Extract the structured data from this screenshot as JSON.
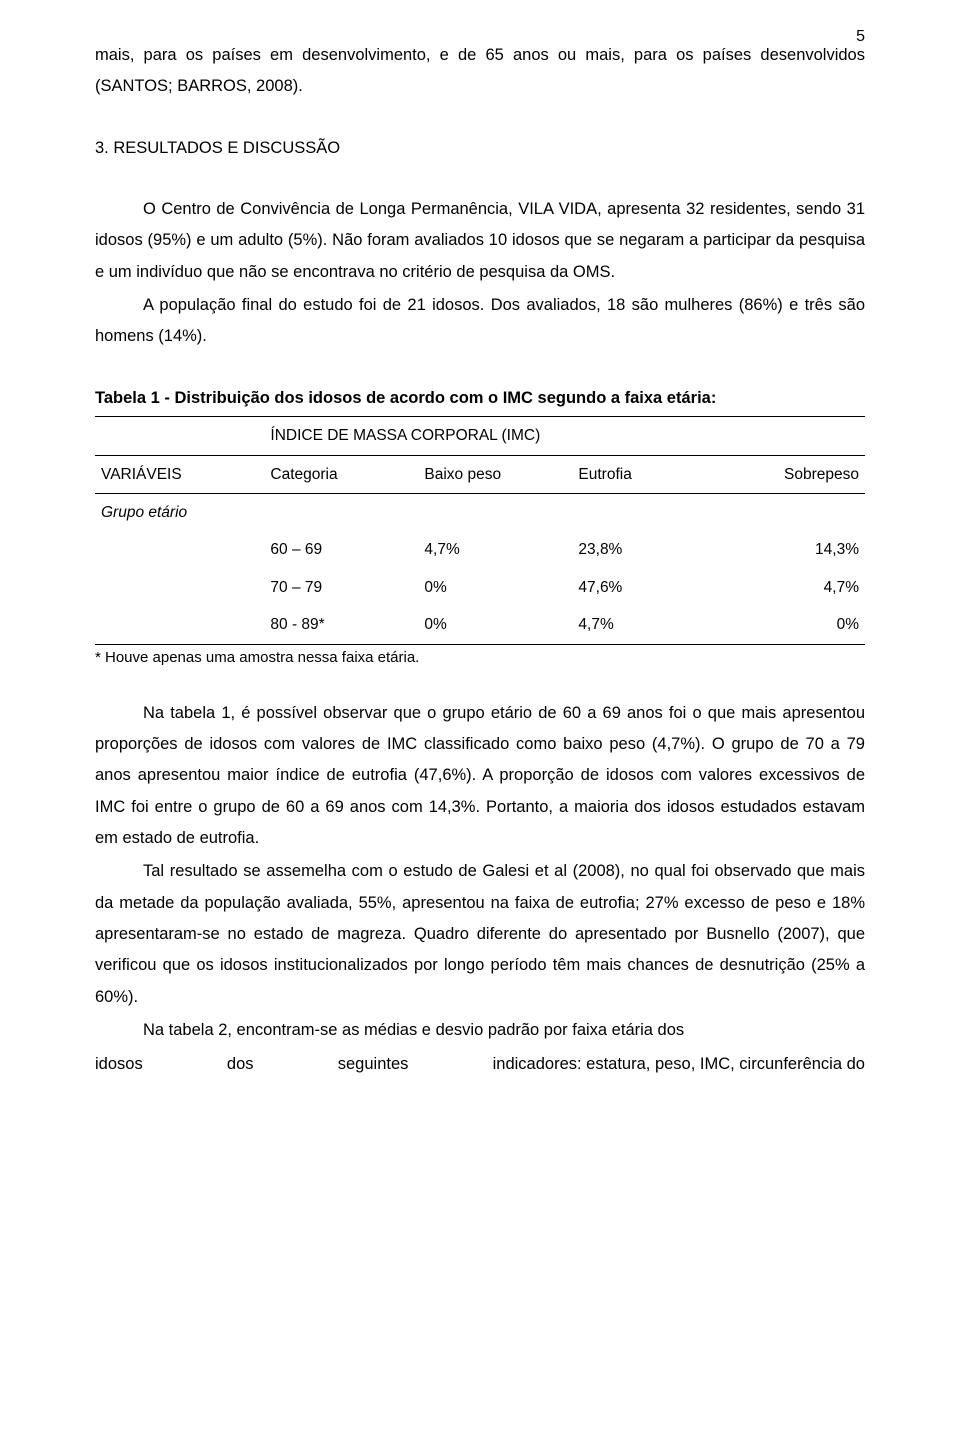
{
  "page_number": "5",
  "paragraphs": {
    "intro1": "mais, para os países em desenvolvimento, e de 65 anos ou mais, para os países desenvolvidos (SANTOS; BARROS, 2008).",
    "section_heading": "3. RESULTADOS E DISCUSSÃO",
    "res1": "O Centro de Convivência de Longa Permanência, VILA VIDA, apresenta 32 residentes, sendo 31 idosos (95%) e um adulto (5%). Não foram avaliados 10 idosos que se negaram a participar da pesquisa e um indivíduo que não se encontrava no critério de pesquisa da OMS.",
    "res2": "A população final do estudo foi de 21 idosos. Dos avaliados, 18 são mulheres (86%) e três são homens (14%).",
    "disc1": "Na tabela 1, é possível observar que o grupo etário de 60 a 69 anos foi o que mais apresentou proporções de idosos com valores de IMC classificado como baixo peso (4,7%). O grupo de 70 a 79 anos apresentou maior índice de eutrofia (47,6%). A proporção de idosos com valores excessivos de IMC foi entre o grupo de 60 a 69 anos com 14,3%. Portanto, a maioria dos idosos estudados estavam em estado de eutrofia.",
    "disc2": "Tal resultado se assemelha com o estudo de Galesi  et al (2008), no qual  foi observado que mais da metade da população avaliada, 55%, apresentou na faixa de eutrofia; 27% excesso de peso e 18% apresentaram-se no estado de magreza. Quadro diferente do apresentado por Busnello (2007), que verificou que os idosos institucionalizados por longo período têm mais chances de desnutrição (25% a 60%).",
    "disc3": "Na tabela 2, encontram-se as médias e desvio padrão por faixa etária dos",
    "disc3_tail_a": "idosos",
    "disc3_tail_b": "dos",
    "disc3_tail_c": "seguintes",
    "disc3_tail_d": "indicadores: estatura, peso, IMC, circunferência do"
  },
  "table1": {
    "title": "Tabela 1 - Distribuição dos idosos de acordo com o IMC segundo a faixa etária:",
    "super_header": "ÍNDICE DE MASSA CORPORAL (IMC)",
    "columns": [
      "VARIÁVEIS",
      "Categoria",
      "Baixo peso",
      "Eutrofia",
      "Sobrepeso"
    ],
    "group_label": "Grupo etário",
    "rows": [
      {
        "cat": "60 – 69",
        "a": "4,7%",
        "b": "23,8%",
        "c": "14,3%"
      },
      {
        "cat": "70 – 79",
        "a": "0%",
        "b": "47,6%",
        "c": "4,7%"
      },
      {
        "cat": "80 - 89*",
        "a": "0%",
        "b": "4,7%",
        "c": "0%"
      }
    ],
    "footnote": "* Houve apenas uma amostra nessa faixa etária."
  }
}
